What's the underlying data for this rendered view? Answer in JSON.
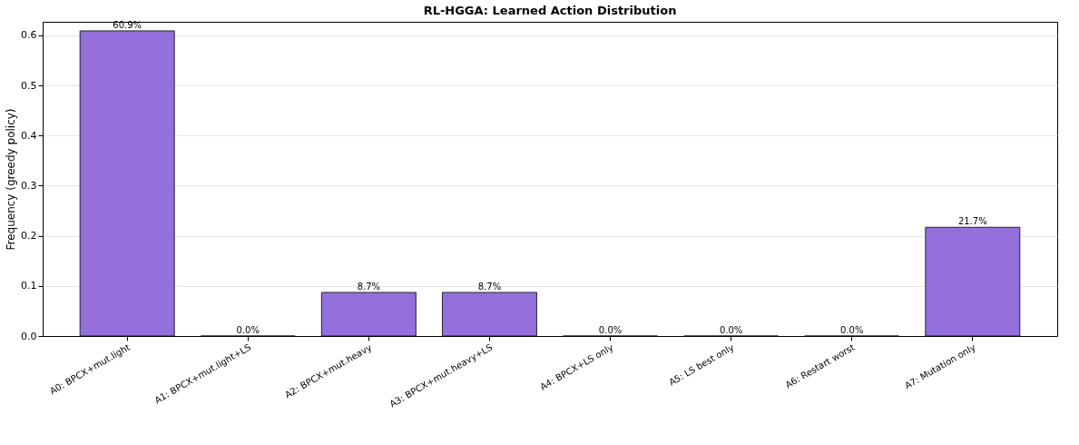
{
  "chart_data": {
    "type": "bar",
    "title": "RL-HGGA: Learned Action Distribution",
    "ylabel": "Frequency (greedy policy)",
    "categories": [
      "A0: BPCX+mut.light",
      "A1: BPCX+mut.light+LS",
      "A2: BPCX+mut.heavy",
      "A3: BPCX+mut.heavy+LS",
      "A4: BPCX+LS only",
      "A5: LS best only",
      "A6: Restart worst",
      "A7: Mutation only"
    ],
    "values": [
      0.609,
      0.0,
      0.087,
      0.087,
      0.0,
      0.0,
      0.0,
      0.217
    ],
    "value_labels": [
      "60.9%",
      "0.0%",
      "8.7%",
      "8.7%",
      "0.0%",
      "0.0%",
      "0.0%",
      "21.7%"
    ],
    "color": "#9370db",
    "ylim": [
      0,
      0.627
    ],
    "yticks": [
      {
        "value": 0,
        "label": "0.0"
      },
      {
        "value": 0.1,
        "label": "0.1"
      },
      {
        "value": 0.2,
        "label": "0.2"
      },
      {
        "value": 0.3,
        "label": "0.3"
      },
      {
        "value": 0.4,
        "label": "0.4"
      },
      {
        "value": 0.5,
        "label": "0.5"
      },
      {
        "value": 0.6,
        "label": "0.6"
      }
    ],
    "grid": "y"
  }
}
